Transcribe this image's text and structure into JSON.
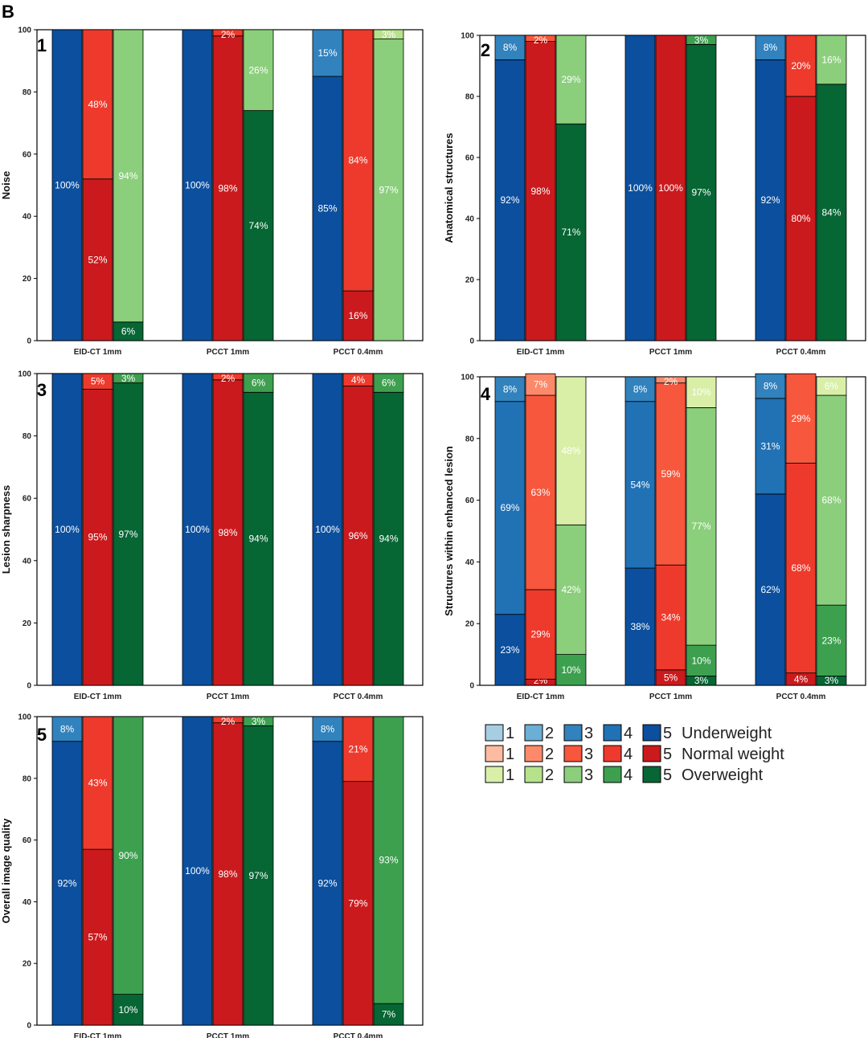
{
  "figure_letter": "B",
  "colors": {
    "Underweight": [
      "#a6cee3",
      "#6baed6",
      "#3182bd",
      "#2171b5",
      "#0b4f9e"
    ],
    "Normal weight": [
      "#fdbba1",
      "#fc8a6a",
      "#f6573d",
      "#ee3a2c",
      "#ca1a1d"
    ],
    "Overweight": [
      "#d9efa8",
      "#b5e28a",
      "#8bcf7c",
      "#3da04f",
      "#066634"
    ]
  },
  "chart_data": [
    {
      "type": "bar",
      "stacked": true,
      "panel": "1",
      "ylabel": "Noise",
      "ylim": [
        0,
        100
      ],
      "yticks": [
        0,
        20,
        40,
        60,
        80,
        100
      ],
      "categories": [
        "EID-CT 1mm",
        "PCCT 1mm",
        "PCCT 0.4mm"
      ],
      "groups": [
        "Underweight",
        "Normal weight",
        "Overweight"
      ],
      "bars": [
        [
          [
            {
              "score": 5,
              "value": 100,
              "label": "100%"
            }
          ],
          [
            {
              "score": 5,
              "value": 52,
              "label": "52%"
            },
            {
              "score": 4,
              "value": 48,
              "label": "48%"
            }
          ],
          [
            {
              "score": 5,
              "value": 6,
              "label": "6%"
            },
            {
              "score": 3,
              "value": 94,
              "label": "94%"
            }
          ]
        ],
        [
          [
            {
              "score": 5,
              "value": 100,
              "label": "100%"
            }
          ],
          [
            {
              "score": 5,
              "value": 98,
              "label": "98%"
            },
            {
              "score": 4,
              "value": 2,
              "label": "2%"
            }
          ],
          [
            {
              "score": 5,
              "value": 74,
              "label": "74%"
            },
            {
              "score": 3,
              "value": 26,
              "label": "26%"
            }
          ]
        ],
        [
          [
            {
              "score": 5,
              "value": 85,
              "label": "85%"
            },
            {
              "score": 3,
              "value": 15,
              "label": "15%"
            }
          ],
          [
            {
              "score": 5,
              "value": 16,
              "label": "16%"
            },
            {
              "score": 4,
              "value": 84,
              "label": "84%"
            }
          ],
          [
            {
              "score": 3,
              "value": 97,
              "label": "97%"
            },
            {
              "score": 2,
              "value": 3,
              "label": "3%"
            }
          ]
        ]
      ]
    },
    {
      "type": "bar",
      "stacked": true,
      "panel": "2",
      "ylabel": "Anatomical structures",
      "ylim": [
        0,
        100
      ],
      "yticks": [
        0,
        20,
        40,
        60,
        80,
        100
      ],
      "categories": [
        "EID-CT 1mm",
        "PCCT 1mm",
        "PCCT 0.4mm"
      ],
      "groups": [
        "Underweight",
        "Normal weight",
        "Overweight"
      ],
      "bars": [
        [
          [
            {
              "score": 5,
              "value": 92,
              "label": "92%"
            },
            {
              "score": 3,
              "value": 8,
              "label": "8%"
            }
          ],
          [
            {
              "score": 5,
              "value": 98,
              "label": "98%"
            },
            {
              "score": 3,
              "value": 2,
              "label": "2%"
            }
          ],
          [
            {
              "score": 5,
              "value": 71,
              "label": "71%"
            },
            {
              "score": 3,
              "value": 29,
              "label": "29%"
            }
          ]
        ],
        [
          [
            {
              "score": 5,
              "value": 100,
              "label": "100%"
            }
          ],
          [
            {
              "score": 5,
              "value": 100,
              "label": "100%"
            }
          ],
          [
            {
              "score": 5,
              "value": 97,
              "label": "97%"
            },
            {
              "score": 4,
              "value": 3,
              "label": "3%"
            }
          ]
        ],
        [
          [
            {
              "score": 5,
              "value": 92,
              "label": "92%"
            },
            {
              "score": 3,
              "value": 8,
              "label": "8%"
            }
          ],
          [
            {
              "score": 5,
              "value": 80,
              "label": "80%"
            },
            {
              "score": 4,
              "value": 20,
              "label": "20%"
            }
          ],
          [
            {
              "score": 5,
              "value": 84,
              "label": "84%"
            },
            {
              "score": 3,
              "value": 16,
              "label": "16%"
            }
          ]
        ]
      ]
    },
    {
      "type": "bar",
      "stacked": true,
      "panel": "3",
      "ylabel": "Lesion sharpness",
      "ylim": [
        0,
        100
      ],
      "yticks": [
        0,
        20,
        40,
        60,
        80,
        100
      ],
      "categories": [
        "EID-CT 1mm",
        "PCCT 1mm",
        "PCCT 0.4mm"
      ],
      "groups": [
        "Underweight",
        "Normal weight",
        "Overweight"
      ],
      "bars": [
        [
          [
            {
              "score": 5,
              "value": 100,
              "label": "100%"
            }
          ],
          [
            {
              "score": 5,
              "value": 95,
              "label": "95%"
            },
            {
              "score": 4,
              "value": 5,
              "label": "5%"
            }
          ],
          [
            {
              "score": 5,
              "value": 97,
              "label": "97%"
            },
            {
              "score": 4,
              "value": 3,
              "label": "3%"
            }
          ]
        ],
        [
          [
            {
              "score": 5,
              "value": 100,
              "label": "100%"
            }
          ],
          [
            {
              "score": 5,
              "value": 98,
              "label": "98%"
            },
            {
              "score": 4,
              "value": 2,
              "label": "2%"
            }
          ],
          [
            {
              "score": 5,
              "value": 94,
              "label": "94%"
            },
            {
              "score": 4,
              "value": 6,
              "label": "6%"
            }
          ]
        ],
        [
          [
            {
              "score": 5,
              "value": 100,
              "label": "100%"
            }
          ],
          [
            {
              "score": 5,
              "value": 96,
              "label": "96%"
            },
            {
              "score": 4,
              "value": 4,
              "label": "4%"
            }
          ],
          [
            {
              "score": 5,
              "value": 94,
              "label": "94%"
            },
            {
              "score": 4,
              "value": 6,
              "label": "6%"
            }
          ]
        ]
      ]
    },
    {
      "type": "bar",
      "stacked": true,
      "panel": "4",
      "ylabel": "Structures within enhanced lesion",
      "ylim": [
        0,
        100
      ],
      "yticks": [
        0,
        20,
        40,
        60,
        80,
        100
      ],
      "categories": [
        "EID-CT 1mm",
        "PCCT 1mm",
        "PCCT 0.4mm"
      ],
      "groups": [
        "Underweight",
        "Normal weight",
        "Overweight"
      ],
      "bars": [
        [
          [
            {
              "score": 5,
              "value": 23,
              "label": "23%"
            },
            {
              "score": 4,
              "value": 69,
              "label": "69%"
            },
            {
              "score": 3,
              "value": 8,
              "label": "8%"
            }
          ],
          [
            {
              "score": 5,
              "value": 2,
              "label": "2%"
            },
            {
              "score": 4,
              "value": 29,
              "label": "29%"
            },
            {
              "score": 3,
              "value": 63,
              "label": "63%"
            },
            {
              "score": 2,
              "value": 7,
              "label": "7%"
            }
          ],
          [
            {
              "score": 4,
              "value": 10,
              "label": "10%"
            },
            {
              "score": 3,
              "value": 42,
              "label": "42%"
            },
            {
              "score": 1,
              "value": 48,
              "label": "48%"
            }
          ]
        ],
        [
          [
            {
              "score": 5,
              "value": 38,
              "label": "38%"
            },
            {
              "score": 4,
              "value": 54,
              "label": "54%"
            },
            {
              "score": 3,
              "value": 8,
              "label": "8%"
            }
          ],
          [
            {
              "score": 5,
              "value": 5,
              "label": "5%"
            },
            {
              "score": 4,
              "value": 34,
              "label": "34%"
            },
            {
              "score": 3,
              "value": 59,
              "label": "59%"
            },
            {
              "score": 2,
              "value": 2,
              "label": "2%"
            }
          ],
          [
            {
              "score": 5,
              "value": 3,
              "label": "3%"
            },
            {
              "score": 4,
              "value": 10,
              "label": "10%"
            },
            {
              "score": 3,
              "value": 77,
              "label": "77%"
            },
            {
              "score": 1,
              "value": 10,
              "label": "10%"
            }
          ]
        ],
        [
          [
            {
              "score": 5,
              "value": 62,
              "label": "62%"
            },
            {
              "score": 4,
              "value": 31,
              "label": "31%"
            },
            {
              "score": 3,
              "value": 8,
              "label": "8%"
            }
          ],
          [
            {
              "score": 5,
              "value": 4,
              "label": "4%"
            },
            {
              "score": 4,
              "value": 68,
              "label": "68%"
            },
            {
              "score": 3,
              "value": 29,
              "label": "29%"
            }
          ],
          [
            {
              "score": 5,
              "value": 3,
              "label": "3%"
            },
            {
              "score": 4,
              "value": 23,
              "label": "23%"
            },
            {
              "score": 3,
              "value": 68,
              "label": "68%"
            },
            {
              "score": 1,
              "value": 6,
              "label": "6%"
            }
          ]
        ]
      ]
    },
    {
      "type": "bar",
      "stacked": true,
      "panel": "5",
      "ylabel": "Overall image quality",
      "ylim": [
        0,
        100
      ],
      "yticks": [
        0,
        20,
        40,
        60,
        80,
        100
      ],
      "categories": [
        "EID-CT 1mm",
        "PCCT 1mm",
        "PCCT 0.4mm"
      ],
      "groups": [
        "Underweight",
        "Normal weight",
        "Overweight"
      ],
      "bars": [
        [
          [
            {
              "score": 5,
              "value": 92,
              "label": "92%"
            },
            {
              "score": 3,
              "value": 8,
              "label": "8%"
            }
          ],
          [
            {
              "score": 5,
              "value": 57,
              "label": "57%"
            },
            {
              "score": 4,
              "value": 43,
              "label": "43%"
            }
          ],
          [
            {
              "score": 5,
              "value": 10,
              "label": "10%"
            },
            {
              "score": 4,
              "value": 90,
              "label": "90%"
            }
          ]
        ],
        [
          [
            {
              "score": 5,
              "value": 100,
              "label": "100%"
            }
          ],
          [
            {
              "score": 5,
              "value": 98,
              "label": "98%"
            },
            {
              "score": 4,
              "value": 2,
              "label": "2%"
            }
          ],
          [
            {
              "score": 5,
              "value": 97,
              "label": "97%"
            },
            {
              "score": 4,
              "value": 3,
              "label": "3%"
            }
          ]
        ],
        [
          [
            {
              "score": 5,
              "value": 92,
              "label": "92%"
            },
            {
              "score": 3,
              "value": 8,
              "label": "8%"
            }
          ],
          [
            {
              "score": 5,
              "value": 79,
              "label": "79%"
            },
            {
              "score": 4,
              "value": 21,
              "label": "21%"
            }
          ],
          [
            {
              "score": 5,
              "value": 7,
              "label": "7%"
            },
            {
              "score": 4,
              "value": 93,
              "label": "93%"
            }
          ]
        ]
      ]
    }
  ],
  "legend": {
    "rows": [
      {
        "group": "Underweight",
        "label": "Underweight",
        "scores": [
          "1",
          "2",
          "3",
          "4",
          "5"
        ]
      },
      {
        "group": "Normal weight",
        "label": "Normal weight",
        "scores": [
          "1",
          "2",
          "3",
          "4",
          "5"
        ]
      },
      {
        "group": "Overweight",
        "label": "Overweight",
        "scores": [
          "1",
          "2",
          "3",
          "4",
          "5"
        ]
      }
    ]
  }
}
